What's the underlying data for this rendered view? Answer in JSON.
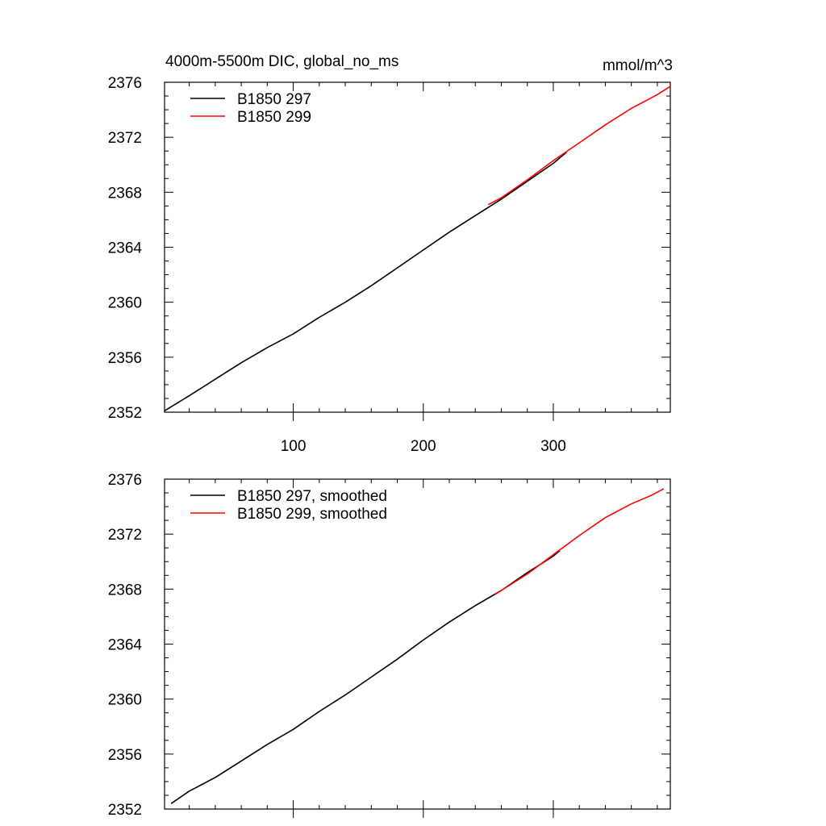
{
  "figure": {
    "title_left": "4000m-5500m DIC, global_no_ms",
    "title_right": "mmol/m^3"
  },
  "chart_data": [
    {
      "type": "line",
      "title": "4000m-5500m DIC, global_no_ms",
      "units": "mmol/m^3",
      "xlim": [
        1,
        390
      ],
      "ylim": [
        2352,
        2376
      ],
      "x_ticks": [
        100,
        200,
        300
      ],
      "x_tick_labels": [
        "100",
        "200",
        "300"
      ],
      "y_ticks": [
        2352,
        2356,
        2360,
        2364,
        2368,
        2372,
        2376
      ],
      "y_tick_labels": [
        "2352",
        "2356",
        "2360",
        "2364",
        "2368",
        "2372",
        "2376"
      ],
      "legend": "top-left",
      "series": [
        {
          "name": "B1850 297",
          "color": "#000000",
          "x": [
            1,
            20,
            40,
            60,
            80,
            100,
            120,
            140,
            160,
            180,
            200,
            220,
            240,
            260,
            280,
            300,
            310
          ],
          "y": [
            2352.1,
            2353.2,
            2354.4,
            2355.6,
            2356.7,
            2357.7,
            2358.9,
            2360.0,
            2361.2,
            2362.5,
            2363.8,
            2365.1,
            2366.3,
            2367.5,
            2368.8,
            2370.1,
            2370.9
          ]
        },
        {
          "name": "B1850 299",
          "color": "#ff0000",
          "x": [
            250,
            260,
            280,
            300,
            320,
            340,
            360,
            380,
            390
          ],
          "y": [
            2367.1,
            2367.6,
            2368.9,
            2370.3,
            2371.6,
            2372.9,
            2374.1,
            2375.1,
            2375.7
          ]
        }
      ]
    },
    {
      "type": "line",
      "xlim": [
        1,
        390
      ],
      "ylim": [
        2352,
        2376
      ],
      "x_ticks": [
        100,
        200,
        300
      ],
      "x_tick_labels": [],
      "y_ticks": [
        2352,
        2356,
        2360,
        2364,
        2368,
        2372,
        2376
      ],
      "y_tick_labels": [
        "2352",
        "2356",
        "2360",
        "2364",
        "2368",
        "2372",
        "2376"
      ],
      "legend": "top-left",
      "series": [
        {
          "name": "B1850 297, smoothed",
          "color": "#000000",
          "x": [
            6,
            20,
            40,
            60,
            80,
            100,
            120,
            140,
            160,
            180,
            200,
            220,
            240,
            260,
            280,
            300,
            305
          ],
          "y": [
            2352.4,
            2353.3,
            2354.3,
            2355.5,
            2356.7,
            2357.8,
            2359.1,
            2360.3,
            2361.6,
            2362.9,
            2364.3,
            2365.6,
            2366.8,
            2367.9,
            2369.2,
            2370.4,
            2370.8
          ]
        },
        {
          "name": "B1850 299, smoothed",
          "color": "#ff0000",
          "x": [
            255,
            260,
            280,
            300,
            320,
            340,
            360,
            375,
            385
          ],
          "y": [
            2367.6,
            2367.9,
            2369.1,
            2370.5,
            2371.9,
            2373.2,
            2374.2,
            2374.8,
            2375.3
          ]
        }
      ]
    }
  ]
}
